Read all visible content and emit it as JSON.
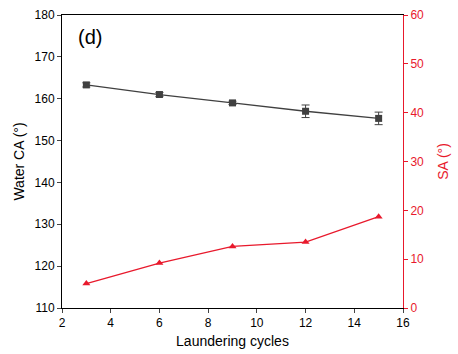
{
  "chart_data": {
    "type": "line",
    "x_label": "Laundering cycles",
    "y_label": "Water CA (°)",
    "y2_label": "SA (°)",
    "annotations": [
      "(d)"
    ],
    "x": [
      3,
      6,
      9,
      12,
      15
    ],
    "series": [
      {
        "name": "Water CA",
        "color": "#404040",
        "marker": "square",
        "line_style": "solid",
        "axis": "y",
        "values": [
          163.3,
          161.0,
          159.0,
          157.0,
          155.3
        ],
        "error": [
          0.5,
          0.5,
          0.4,
          1.5,
          1.5
        ]
      },
      {
        "name": "SA",
        "color": "#e8192c",
        "marker": "triangle-up",
        "line_style": "solid",
        "axis": "y2",
        "values": [
          5.0,
          9.2,
          12.6,
          13.5,
          18.7
        ]
      }
    ],
    "xlim": [
      2,
      16
    ],
    "xticks": [
      2,
      4,
      6,
      8,
      10,
      12,
      14,
      16
    ],
    "ylim": [
      110,
      180
    ],
    "yticks": [
      110,
      120,
      130,
      140,
      150,
      160,
      170,
      180
    ],
    "y2lim": [
      0,
      60
    ],
    "y2ticks": [
      0,
      10,
      20,
      30,
      40,
      50,
      60
    ],
    "grid": false
  }
}
